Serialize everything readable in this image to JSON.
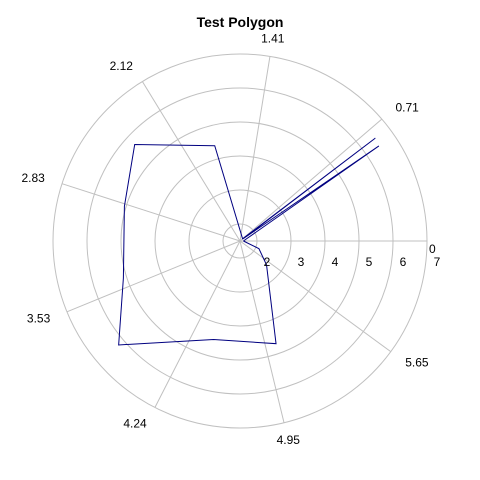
{
  "chart_data": {
    "type": "polar-line",
    "title": "Test Polygon",
    "angle_labels": [
      "0",
      "0.71",
      "1.41",
      "2.12",
      "2.83",
      "3.53",
      "4.24",
      "4.95",
      "5.65"
    ],
    "angle_ticks": [
      0,
      0.71,
      1.41,
      2.12,
      2.83,
      3.53,
      4.24,
      4.95,
      5.65
    ],
    "radial_labels": [
      "2",
      "3",
      "4",
      "5",
      "6",
      "7"
    ],
    "radial_ticks": [
      2,
      3,
      4,
      5,
      6,
      7
    ],
    "rlim": [
      1.5,
      7
    ],
    "grid": true,
    "series": [
      {
        "color": "#000080",
        "points": [
          {
            "theta": 0.0,
            "r": 1.6
          },
          {
            "theta": 0.6,
            "r": 6.45
          },
          {
            "theta": 0.63,
            "r": 1.6
          },
          {
            "theta": 0.65,
            "r": 6.5
          },
          {
            "theta": 0.7,
            "r": 1.6
          },
          {
            "theta": 1.83,
            "r": 4.4
          },
          {
            "theta": 2.4,
            "r": 5.7
          },
          {
            "theta": 2.85,
            "r": 5.05
          },
          {
            "theta": 3.45,
            "r": 5.1
          },
          {
            "theta": 3.85,
            "r": 6.2
          },
          {
            "theta": 4.45,
            "r": 4.5
          },
          {
            "theta": 5.05,
            "r": 4.7
          },
          {
            "theta": 5.55,
            "r": 2.55
          },
          {
            "theta": 5.9,
            "r": 2.1
          },
          {
            "theta": 6.28,
            "r": 1.6
          }
        ]
      }
    ]
  }
}
